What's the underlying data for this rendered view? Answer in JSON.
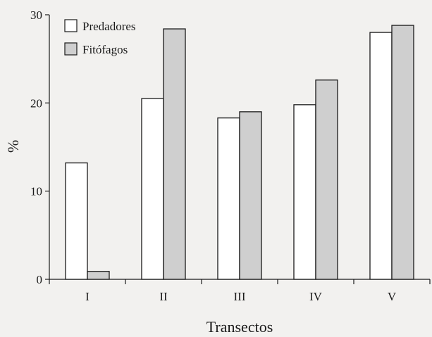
{
  "chart_data": {
    "type": "bar",
    "categories": [
      "I",
      "II",
      "III",
      "IV",
      "V"
    ],
    "series": [
      {
        "name": "Predadores",
        "values": [
          13.2,
          20.5,
          18.3,
          19.8,
          28.0
        ],
        "color": "#ffffff"
      },
      {
        "name": "Fitófagos",
        "values": [
          0.9,
          28.4,
          19.0,
          22.6,
          28.8
        ],
        "color": "#cfcfcf"
      }
    ],
    "title": "",
    "xlabel": "Transectos",
    "ylabel": "%",
    "ylim": [
      0,
      30
    ],
    "yticks": [
      0,
      10,
      20,
      30
    ],
    "legend_position": "top-left",
    "grid": false
  }
}
